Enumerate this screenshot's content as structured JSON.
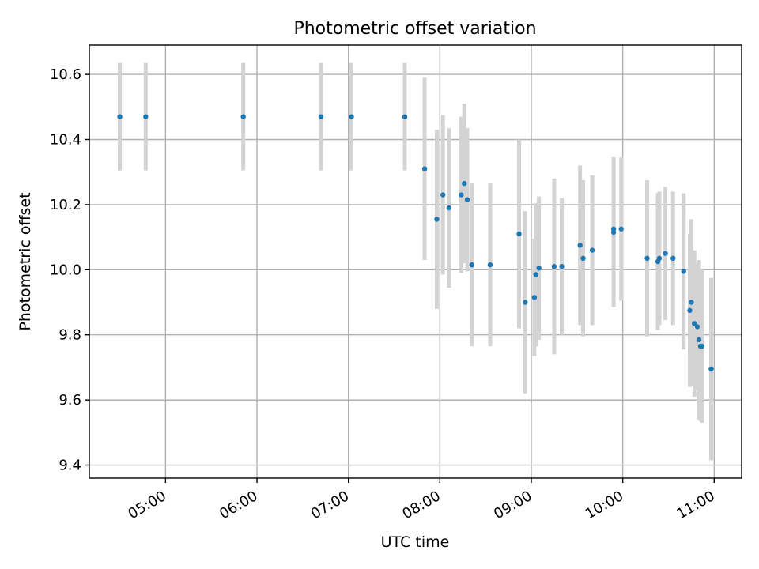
{
  "chart_data": {
    "type": "scatter",
    "title": "Photometric offset variation",
    "xlabel": "UTC time",
    "ylabel": "Photometric offset",
    "x_ticks": [
      "05:00",
      "06:00",
      "07:00",
      "08:00",
      "09:00",
      "10:00",
      "11:00"
    ],
    "y_ticks": [
      "9.4",
      "9.6",
      "9.8",
      "10.0",
      "10.2",
      "10.4",
      "10.6"
    ],
    "xlim": [
      "04:10",
      "11:18"
    ],
    "ylim": [
      9.36,
      10.69
    ],
    "grid": true,
    "colors": {
      "marker": "#1f77b4",
      "errorbar": "#d3d3d3"
    },
    "series": [
      {
        "x": [
          "04:30",
          "04:47",
          "05:51",
          "06:42",
          "07:02",
          "07:37",
          "07:50",
          "07:58",
          "08:02",
          "08:06",
          "08:14",
          "08:16",
          "08:18",
          "08:21",
          "08:33",
          "08:52",
          "08:56",
          "09:02",
          "09:03",
          "09:05",
          "09:15",
          "09:20",
          "09:32",
          "09:34",
          "09:40",
          "09:54",
          "09:54",
          "09:59",
          "10:16",
          "10:23",
          "10:24",
          "10:28",
          "10:33",
          "10:40",
          "10:44",
          "10:45",
          "10:47",
          "10:49",
          "10:50",
          "10:51",
          "10:52",
          "10:58"
        ],
        "y": [
          10.47,
          10.47,
          10.47,
          10.47,
          10.47,
          10.47,
          10.31,
          10.155,
          10.23,
          10.19,
          10.23,
          10.265,
          10.215,
          10.015,
          10.015,
          10.11,
          9.9,
          9.915,
          9.985,
          10.005,
          10.01,
          10.01,
          10.075,
          10.035,
          10.06,
          10.115,
          10.125,
          10.125,
          10.035,
          10.025,
          10.035,
          10.05,
          10.035,
          9.995,
          9.875,
          9.9,
          9.835,
          9.825,
          9.785,
          9.765,
          9.765,
          9.695
        ],
        "yerr": [
          0.165,
          0.165,
          0.165,
          0.165,
          0.165,
          0.165,
          0.28,
          0.275,
          0.245,
          0.245,
          0.24,
          0.245,
          0.22,
          0.25,
          0.25,
          0.29,
          0.28,
          0.18,
          0.22,
          0.22,
          0.27,
          0.21,
          0.245,
          0.24,
          0.23,
          0.23,
          0.22,
          0.22,
          0.24,
          0.21,
          0.205,
          0.205,
          0.205,
          0.24,
          0.235,
          0.255,
          0.225,
          0.195,
          0.245,
          0.23,
          0.235,
          0.28
        ]
      }
    ]
  }
}
